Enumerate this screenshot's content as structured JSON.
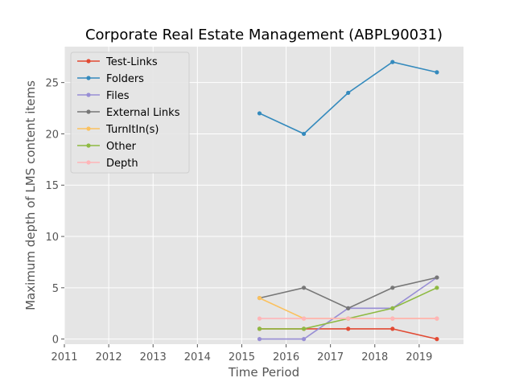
{
  "chart_data": {
    "type": "line",
    "title": "Corporate Real Estate Management (ABPL90031)",
    "xlabel": "Time Period",
    "ylabel": "Maximum depth of LMS content items",
    "xlim": [
      2011.0,
      2020.0
    ],
    "ylim": [
      -0.5,
      28.5
    ],
    "xticks": [
      2011,
      2012,
      2013,
      2014,
      2015,
      2016,
      2017,
      2018,
      2019
    ],
    "yticks": [
      0,
      5,
      10,
      15,
      20,
      25
    ],
    "grid": true,
    "legend_position": "top-left",
    "x": [
      2015.4,
      2016.4,
      2017.4,
      2018.4,
      2019.4
    ],
    "series": [
      {
        "name": "Test-Links",
        "color": "#E24A33",
        "values": [
          1,
          1,
          1,
          1,
          0
        ]
      },
      {
        "name": "Folders",
        "color": "#348ABD",
        "values": [
          22,
          20,
          24,
          27,
          26
        ]
      },
      {
        "name": "Files",
        "color": "#988ED5",
        "values": [
          0,
          0,
          3,
          3,
          6
        ]
      },
      {
        "name": "External Links",
        "color": "#777777",
        "values": [
          4,
          5,
          3,
          5,
          6
        ]
      },
      {
        "name": "TurnItIn(s)",
        "color": "#FBC15E",
        "values": [
          4,
          2,
          2,
          2,
          2
        ]
      },
      {
        "name": "Other",
        "color": "#8EBA42",
        "values": [
          1,
          1,
          2,
          3,
          5
        ]
      },
      {
        "name": "Depth",
        "color": "#FFB5B8",
        "values": [
          2,
          2,
          2,
          2,
          2
        ]
      }
    ]
  }
}
